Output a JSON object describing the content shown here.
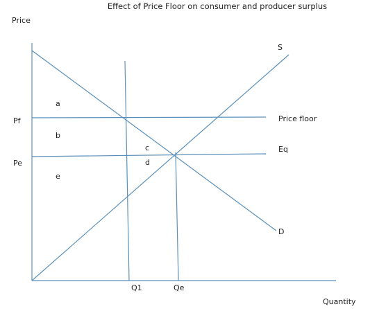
{
  "title": "Effect of Price Floor on consumer and producer surplus",
  "axes": {
    "y_label": "Price",
    "x_label": "Quantity"
  },
  "price_labels": {
    "pf": "Pf",
    "pe": "Pe"
  },
  "quantity_labels": {
    "q1": "Q1",
    "qe": "Qe"
  },
  "curve_labels": {
    "supply": "S",
    "demand": "D",
    "price_floor": "Price floor",
    "equilibrium": "Eq"
  },
  "area_labels": {
    "a": "a",
    "b": "b",
    "c": "c",
    "d": "d",
    "e": "e"
  },
  "colors": {
    "line": "#5b8fb9",
    "text": "#222222",
    "background": "#ffffff"
  }
}
